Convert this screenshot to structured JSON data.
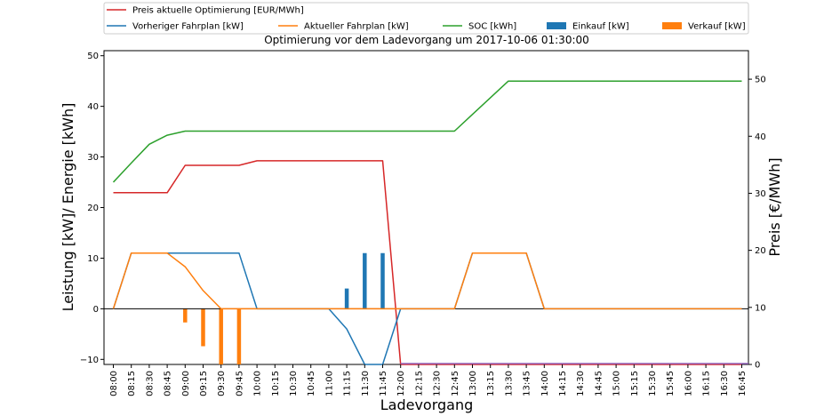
{
  "chart_data": {
    "type": "line",
    "title": "Optimierung vor dem Ladevorgang um 2017-10-06 01:30:00",
    "xlabel": "Ladevorgang",
    "ylabel_left": "Leistung [kW]/ Energie [kWh]",
    "ylabel_right": "Preis [€/MWh]",
    "ylim_left": [
      -11,
      51
    ],
    "ylim_right": [
      0,
      55
    ],
    "yticks_left": [
      "−10",
      "0",
      "10",
      "20",
      "30",
      "40",
      "50"
    ],
    "yticks_right": [
      "0",
      "10",
      "20",
      "30",
      "40",
      "50"
    ],
    "categories": [
      "08:00",
      "08:15",
      "08:30",
      "08:45",
      "09:00",
      "09:15",
      "09:30",
      "09:45",
      "10:00",
      "10:15",
      "10:30",
      "10:45",
      "11:00",
      "11:15",
      "11:30",
      "11:45",
      "12:00",
      "12:15",
      "12:30",
      "12:45",
      "13:00",
      "13:15",
      "13:30",
      "13:45",
      "14:00",
      "14:15",
      "14:30",
      "14:45",
      "15:00",
      "15:15",
      "15:30",
      "15:45",
      "16:00",
      "16:15",
      "16:30",
      "16:45"
    ],
    "grid": false,
    "legend_position": "top",
    "series": [
      {
        "name": "Preis aktuelle Optimierung [EUR/MWh]",
        "kind": "line",
        "axis": "right",
        "color": "#d62728",
        "values": [
          30.1,
          30.1,
          30.1,
          30.1,
          34.9,
          34.9,
          34.9,
          34.9,
          35.7,
          35.7,
          35.7,
          35.7,
          35.7,
          35.7,
          35.7,
          35.7,
          0,
          0,
          0,
          0,
          0,
          0,
          0,
          0,
          0,
          0,
          0,
          0,
          0,
          0,
          0,
          0,
          0,
          0,
          0,
          0
        ]
      },
      {
        "name": "Vorheriger Fahrplan [kW]",
        "kind": "line",
        "axis": "left",
        "color": "#1f77b4",
        "values": [
          0,
          11,
          11,
          11,
          11,
          11,
          11,
          11,
          0,
          0,
          0,
          0,
          0,
          -4,
          -11,
          -11,
          0,
          0,
          0,
          0,
          11,
          11,
          11,
          11,
          0,
          0,
          0,
          0,
          0,
          0,
          0,
          0,
          0,
          0,
          0,
          0
        ]
      },
      {
        "name": "Aktueller Fahrplan [kW]",
        "kind": "line",
        "axis": "left",
        "color": "#ff7f0e",
        "values": [
          0,
          11,
          11,
          11,
          8.3,
          3.6,
          0,
          0,
          0,
          0,
          0,
          0,
          0,
          0,
          0,
          0,
          0,
          0,
          0,
          0,
          11,
          11,
          11,
          11,
          0,
          0,
          0,
          0,
          0,
          0,
          0,
          0,
          0,
          0,
          0,
          0
        ]
      },
      {
        "name": "SOC [kWh]",
        "kind": "line",
        "axis": "left",
        "color": "#2ca02c",
        "values": [
          25,
          28.8,
          32.5,
          34.3,
          35.1,
          35.1,
          35.1,
          35.1,
          35.1,
          35.1,
          35.1,
          35.1,
          35.1,
          35.1,
          35.1,
          35.1,
          35.1,
          35.1,
          35.1,
          35.1,
          38.4,
          41.7,
          45,
          45,
          45,
          45,
          45,
          45,
          45,
          45,
          45,
          45,
          45,
          45,
          45,
          45
        ]
      },
      {
        "name": "Einkauf [kW]",
        "kind": "bar",
        "axis": "left",
        "color": "#1f77b4",
        "values": [
          0,
          0,
          0,
          0,
          0,
          0,
          0,
          0,
          0,
          0,
          0,
          0,
          0,
          4,
          11,
          11,
          0,
          0,
          0,
          0,
          0,
          0,
          0,
          0,
          0,
          0,
          0,
          0,
          0,
          0,
          0,
          0,
          0,
          0,
          0,
          0
        ]
      },
      {
        "name": "Verkauf [kW]",
        "kind": "bar",
        "axis": "left",
        "color": "#ff7f0e",
        "values": [
          0,
          0,
          0,
          0,
          -2.7,
          -7.4,
          -11,
          -11,
          0,
          0,
          0,
          0,
          0,
          0,
          0,
          0,
          0,
          0,
          0,
          0,
          0,
          0,
          0,
          0,
          0,
          0,
          0,
          0,
          0,
          0,
          0,
          0,
          0,
          0,
          0,
          0
        ]
      }
    ]
  }
}
